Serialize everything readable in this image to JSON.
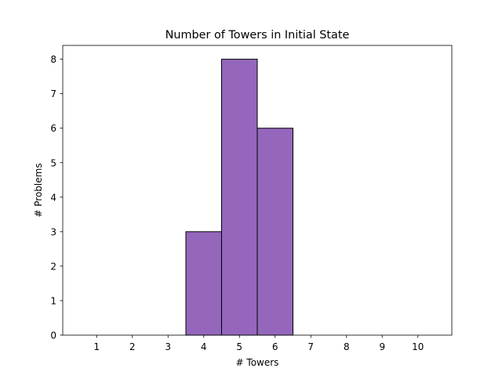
{
  "chart_data": {
    "type": "bar",
    "title": "Number of Towers in Initial State",
    "xlabel": "# Towers",
    "ylabel": "# Problems",
    "categories": [
      "1",
      "2",
      "3",
      "4",
      "5",
      "6",
      "7",
      "8",
      "9",
      "10"
    ],
    "values": [
      0,
      0,
      0,
      3,
      8,
      6,
      0,
      0,
      0,
      0
    ],
    "xlim": [
      0.05,
      10.95
    ],
    "ylim": [
      0,
      8.4
    ],
    "yticks": [
      0,
      1,
      2,
      3,
      4,
      5,
      6,
      7,
      8
    ],
    "grid": false,
    "legend": "none",
    "colors": {
      "bar_fill": "#9467bd",
      "bar_edge": "#000000"
    }
  }
}
